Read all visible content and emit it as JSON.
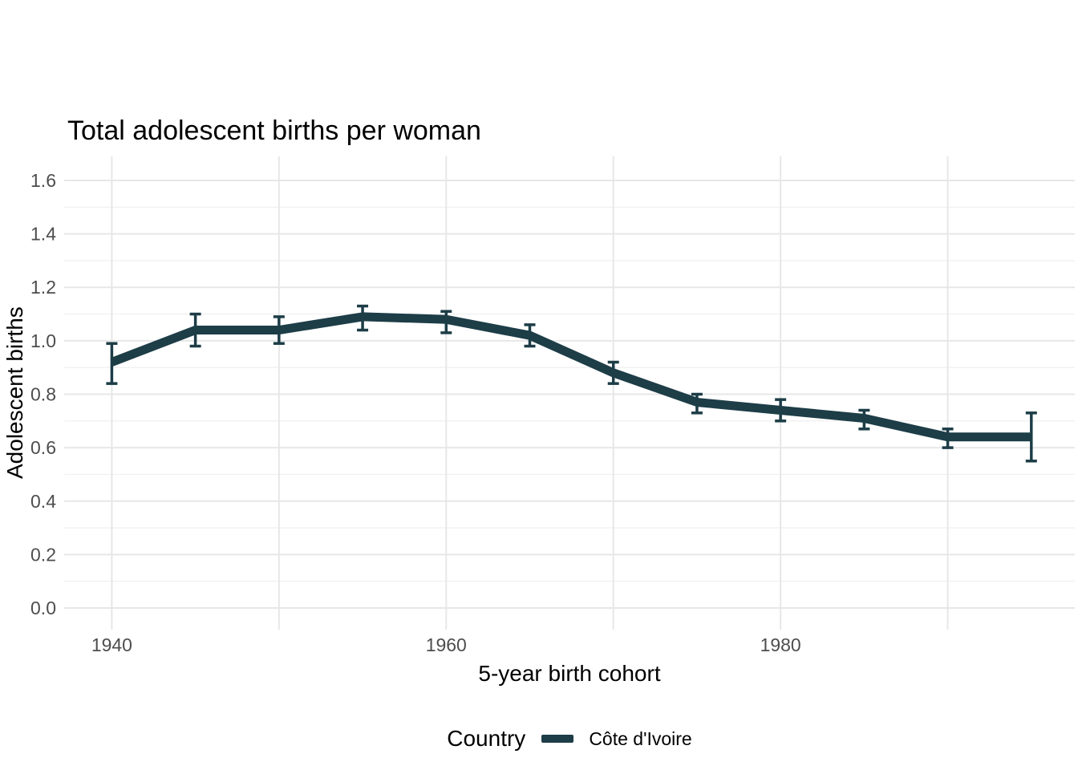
{
  "colors": {
    "accent": "#1d3d47",
    "grid_major": "#e7e7e7",
    "grid_minor": "#f1f1f1",
    "tick_text": "#4d4d4d",
    "text": "#000000",
    "background": "#ffffff"
  },
  "chart_data": {
    "type": "line",
    "title": "Total adolescent births per woman",
    "xlabel": "5-year birth cohort",
    "ylabel": "Adolescent births",
    "x": [
      1940,
      1945,
      1950,
      1955,
      1960,
      1965,
      1970,
      1975,
      1980,
      1985,
      1990,
      1995
    ],
    "series": [
      {
        "name": "Côte d'Ivoire",
        "color": "#1d3d47",
        "values": [
          0.92,
          1.04,
          1.04,
          1.09,
          1.08,
          1.02,
          0.88,
          0.77,
          0.74,
          0.71,
          0.64,
          0.64
        ],
        "ci_lower": [
          0.84,
          0.98,
          0.99,
          1.04,
          1.03,
          0.98,
          0.84,
          0.73,
          0.7,
          0.67,
          0.6,
          0.55
        ],
        "ci_upper": [
          0.99,
          1.1,
          1.09,
          1.13,
          1.11,
          1.06,
          0.92,
          0.8,
          0.78,
          0.74,
          0.67,
          0.73
        ]
      }
    ],
    "error_bars": true,
    "x_ticks": [
      {
        "value": 1940,
        "label": "1940"
      },
      {
        "value": 1950,
        "label": ""
      },
      {
        "value": 1960,
        "label": "1960"
      },
      {
        "value": 1970,
        "label": ""
      },
      {
        "value": 1980,
        "label": "1980"
      },
      {
        "value": 1990,
        "label": ""
      }
    ],
    "y_ticks": [
      {
        "value": 0.0,
        "label": "0.0"
      },
      {
        "value": 0.2,
        "label": "0.2"
      },
      {
        "value": 0.4,
        "label": "0.4"
      },
      {
        "value": 0.6,
        "label": "0.6"
      },
      {
        "value": 0.8,
        "label": "0.8"
      },
      {
        "value": 1.0,
        "label": "1.0"
      },
      {
        "value": 1.2,
        "label": "1.2"
      },
      {
        "value": 1.4,
        "label": "1.4"
      },
      {
        "value": 1.6,
        "label": "1.6"
      }
    ],
    "y_minor_ticks": [
      0.1,
      0.3,
      0.5,
      0.7,
      0.9,
      1.1,
      1.3,
      1.5
    ],
    "x_range": [
      1937.15,
      1997.6
    ],
    "y_range": [
      -0.081,
      1.69
    ],
    "grid": "horizontal major+minor, vertical major",
    "legend": {
      "position": "bottom",
      "title": "Country",
      "entries": [
        {
          "label": "Côte d'Ivoire",
          "color": "#1d3d47"
        }
      ]
    }
  }
}
